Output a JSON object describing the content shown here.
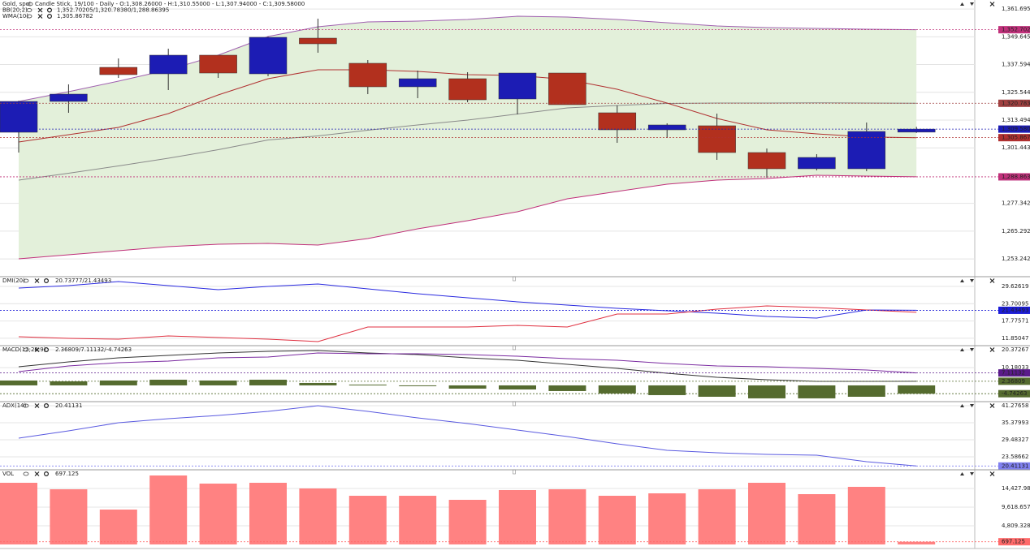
{
  "chart_data": [
    {
      "type": "candlestick",
      "title": "Gold, spot",
      "subtitle": "Candle Stick, 19/100 - Daily - O:1,308.26000 - H:1,310.55000 - L:1,307.94000 - C:1,309.58000",
      "open": [
        1308.21,
        1321.59,
        1336.38,
        1333.56,
        1341.66,
        1333.56,
        1349.05,
        1338.14,
        1327.93,
        1331.45,
        1322.65,
        1333.91,
        1316.66,
        1309.27,
        1311.03,
        1299.41,
        1292.37,
        1292.37,
        1308.26
      ],
      "high": [
        1321.9,
        1328.99,
        1340.25,
        1344.48,
        1341.66,
        1349.76,
        1357.5,
        1339.55,
        1334.97,
        1334.26,
        1333.91,
        1333.91,
        1319.83,
        1312.09,
        1316.31,
        1301.17,
        1298.7,
        1312.44,
        1310.55
      ],
      "low": [
        1299.4,
        1316.66,
        1331.8,
        1326.52,
        1331.8,
        1332.5,
        1342.72,
        1324.76,
        1323.0,
        1321.24,
        1315.96,
        1320.18,
        1303.63,
        1305.74,
        1296.24,
        1288.49,
        1291.66,
        1291.31,
        1307.94
      ],
      "close": [
        1321.59,
        1324.76,
        1333.21,
        1341.66,
        1333.91,
        1349.41,
        1346.59,
        1327.93,
        1331.45,
        1322.29,
        1333.91,
        1320.18,
        1309.27,
        1311.38,
        1299.41,
        1292.37,
        1297.29,
        1308.56,
        1309.58
      ],
      "up_color": "#1c1cb4",
      "down_color": "#b2301e",
      "ylim": [
        1245.89,
        1365.6
      ],
      "yticks": [
        {
          "value": 1361.69568,
          "label": "1,361.69568"
        },
        {
          "value": 1349.64528,
          "label": "1,349.64528"
        },
        {
          "value": 1337.59487,
          "label": "1,337.59487"
        },
        {
          "value": 1325.54447,
          "label": "1,325.54447"
        },
        {
          "value": 1313.49406,
          "label": "1,313.49406"
        },
        {
          "value": 1301.44366,
          "label": "1,301.44366"
        },
        {
          "value": 1277.34285,
          "label": "1,277.34285"
        },
        {
          "value": 1265.29245,
          "label": "1,265.29245"
        },
        {
          "value": 1253.24204,
          "label": "1,253.24204"
        }
      ],
      "grid": true,
      "overlays": [
        {
          "name": "BB(20;2)",
          "readout": "1,352.70205/1,320.78380/1,288.86395",
          "color": "#c0307a",
          "fill": "#e3f0da",
          "middle_color": "#8a8a8a",
          "upper": [
            1321.59,
            1325.81,
            1330.39,
            1335.32,
            1341.66,
            1349.76,
            1353.98,
            1356.09,
            1356.45,
            1357.15,
            1358.56,
            1358.21,
            1357.15,
            1355.74,
            1354.33,
            1353.63,
            1353.28,
            1352.92,
            1352.70205
          ],
          "middle": [
            1287.44,
            1290.43,
            1293.6,
            1296.94,
            1300.64,
            1304.87,
            1306.63,
            1309.09,
            1311.38,
            1313.49,
            1316.13,
            1318.78,
            1319.83,
            1320.71,
            1320.88,
            1320.89,
            1321.0,
            1320.9,
            1320.7838
          ],
          "lower": [
            1253.28,
            1255.04,
            1256.8,
            1258.56,
            1259.62,
            1259.97,
            1259.27,
            1262.08,
            1266.31,
            1269.83,
            1273.7,
            1279.34,
            1282.51,
            1285.67,
            1287.43,
            1288.14,
            1289.55,
            1289.2,
            1288.86395
          ]
        },
        {
          "name": "WMA(10)",
          "readout": "1,305.86782",
          "color": "#b03030",
          "values": [
            1303.98,
            1307.15,
            1310.32,
            1316.31,
            1324.41,
            1331.45,
            1335.32,
            1335.32,
            1334.62,
            1333.21,
            1332.86,
            1331.1,
            1326.87,
            1320.88,
            1314.19,
            1309.26,
            1307.5,
            1306.2,
            1305.86782
          ]
        }
      ],
      "price_labels": [
        {
          "value": 1352.70205,
          "label": "1,352.70205",
          "color": "#c0307a"
        },
        {
          "value": 1320.7838,
          "label": "1,320.78380",
          "color": "#a04040"
        },
        {
          "value": 1309.58,
          "label": "1,309.58000",
          "color": "#1c1cb4"
        },
        {
          "value": 1305.86782,
          "label": "1,305.86782",
          "color": "#b03030"
        },
        {
          "value": 1288.86395,
          "label": "1,288.86395",
          "color": "#c0307a"
        }
      ]
    },
    {
      "type": "line",
      "title": "DMI(20)",
      "readout": "20.73777/21.43493",
      "readout_color": "#c03040",
      "series": [
        {
          "color": "#2a2ae0",
          "values": [
            29.07,
            29.9,
            31.3,
            29.9,
            28.51,
            29.63,
            30.46,
            28.79,
            27.12,
            25.73,
            24.34,
            23.23,
            22.11,
            21.28,
            20.44,
            19.33,
            18.78,
            21.56,
            21.43493
          ]
        },
        {
          "color": "#e03040",
          "values": [
            12.38,
            11.82,
            11.54,
            12.66,
            12.1,
            11.54,
            10.71,
            15.72,
            15.72,
            15.72,
            16.27,
            15.72,
            20.17,
            20.17,
            21.84,
            22.95,
            22.39,
            21.56,
            20.73777
          ]
        }
      ],
      "ylim": [
        9.6,
        32.96
      ],
      "yticks": [
        29.62619,
        23.70095,
        17.77571,
        11.85047
      ],
      "grid": true,
      "price_labels": [
        {
          "value": 21.43493,
          "label": "21.43493",
          "color": "#1c1cd8"
        }
      ]
    },
    {
      "type": "line",
      "title": "MACD(12;26;9)",
      "readout": "2.36809/7.11132/-4.74263",
      "readout_color": "#556b2f",
      "series": [
        {
          "color": "#333333",
          "values": [
            10.64,
            13.42,
            15.74,
            17.13,
            18.52,
            19.45,
            19.91,
            18.52,
            17.59,
            15.74,
            14.35,
            12.03,
            9.72,
            6.94,
            4.62,
            3.24,
            2.31,
            2.31,
            2.36809
          ]
        },
        {
          "color": "#7a2aa0",
          "values": [
            7.86,
            11.1,
            12.96,
            13.89,
            15.74,
            16.21,
            18.52,
            18.06,
            18.05,
            17.59,
            16.67,
            15.27,
            14.35,
            12.5,
            11.11,
            10.65,
            9.72,
            8.8,
            7.11132
          ]
        }
      ],
      "bars": {
        "color": "#556b2f",
        "values": [
          2.78,
          2.32,
          2.78,
          3.24,
          2.78,
          3.24,
          1.39,
          0.46,
          -0.46,
          -1.85,
          -2.32,
          -3.24,
          -4.63,
          -5.56,
          -6.49,
          -7.41,
          -7.41,
          -6.49,
          -4.74263
        ]
      },
      "ylim": [
        -8.82,
        22.69
      ],
      "yticks": [
        20.37267,
        10.18033
      ],
      "grid": true,
      "price_labels": [
        {
          "value": 7.11132,
          "label": "7.11132",
          "color": "#5a1a8a"
        },
        {
          "value": 2.36809,
          "label": "2.36809",
          "color": "#556b2f"
        },
        {
          "value": -4.74263,
          "label": "-4.74263",
          "color": "#556b2f"
        }
      ]
    },
    {
      "type": "line",
      "title": "ADX(14)",
      "readout": "20.41131",
      "readout_color": "#4a4ae0",
      "series": [
        {
          "color": "#5a5ae0",
          "values": [
            30.04,
            32.57,
            35.38,
            36.78,
            37.91,
            39.31,
            41.28,
            39.31,
            37.06,
            35.1,
            32.85,
            30.61,
            28.08,
            25.83,
            24.99,
            24.43,
            24.15,
            21.9,
            20.41131
          ]
        }
      ],
      "ylim": [
        19.37,
        42.68
      ],
      "yticks": [
        41.27658,
        35.37993,
        29.48327,
        23.58662
      ],
      "grid": true,
      "price_labels": [
        {
          "value": 20.41131,
          "label": "20.41131",
          "color": "#8080f0"
        }
      ]
    },
    {
      "type": "bar",
      "title": "VOL",
      "readout": "697.125",
      "readout_color": "#ff5a5a",
      "color": "#ff8282",
      "values": [
        15892,
        14219,
        8991,
        17774,
        15683,
        15892,
        14428,
        12546,
        12546,
        11501,
        14010,
        14219,
        12546,
        13173,
        14219,
        15892,
        12964,
        14846,
        697.125
      ],
      "ylim": [
        -836,
        19237
      ],
      "yticks": [
        {
          "value": 14427.986,
          "label": "14,427.986"
        },
        {
          "value": 9618.657,
          "label": "9,618.657"
        },
        {
          "value": 4809.328,
          "label": "4,809.328"
        }
      ],
      "grid": true,
      "price_labels": [
        {
          "value": 697.125,
          "label": "697.125",
          "color": "#ff6a6a"
        }
      ]
    }
  ]
}
